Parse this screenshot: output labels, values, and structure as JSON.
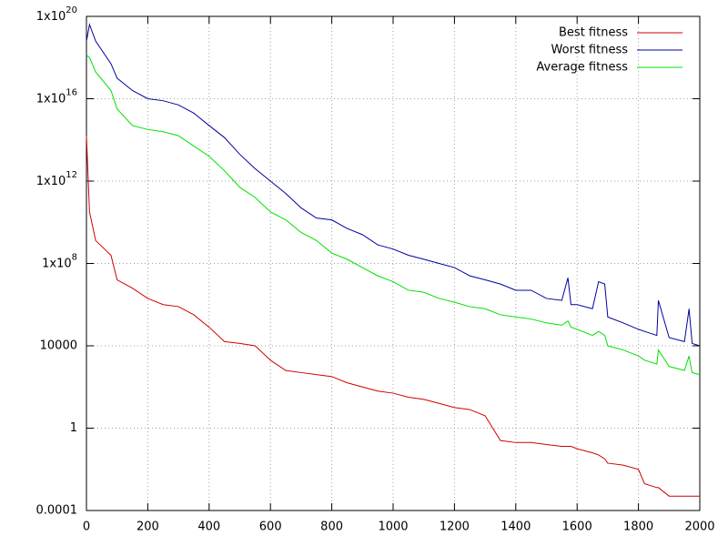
{
  "chart_data": {
    "type": "line",
    "log_y": true,
    "grid": true,
    "legend": "top-right",
    "xlim": [
      0,
      2000
    ],
    "xticks": [
      0,
      200,
      400,
      600,
      800,
      1000,
      1200,
      1400,
      1600,
      1800,
      2000
    ],
    "ylim": [
      0.0001,
      1e+20
    ],
    "yticks": [
      {
        "value": 0.0001,
        "label": "0.0001"
      },
      1,
      10000,
      {
        "value": 100000000.0,
        "label": "1x10^8"
      },
      {
        "value": 1000000000000.0,
        "label": "1x10^12"
      },
      {
        "value": 1e+16,
        "label": "1x10^16"
      },
      {
        "value": 1e+20,
        "label": "1x10^20"
      }
    ],
    "x": [
      0,
      10,
      30,
      80,
      100,
      150,
      200,
      250,
      300,
      350,
      400,
      450,
      500,
      550,
      600,
      650,
      700,
      750,
      800,
      850,
      900,
      950,
      1000,
      1050,
      1100,
      1150,
      1200,
      1250,
      1300,
      1350,
      1400,
      1450,
      1500,
      1550,
      1570,
      1580,
      1600,
      1650,
      1670,
      1690,
      1700,
      1750,
      1800,
      1820,
      1860,
      1865,
      1900,
      1950,
      1965,
      1975,
      2000
    ],
    "series": [
      {
        "name": "Best fitness",
        "color": "#d00000",
        "values": [
          160000000000000.0,
          32000000000.0,
          1300000000.0,
          250000000.0,
          16000000.0,
          6300000.0,
          2000000.0,
          1000000.0,
          800000.0,
          320000.0,
          80000.0,
          16000.0,
          13000.0,
          10000.0,
          2000,
          630,
          500,
          400,
          320,
          160,
          100,
          63,
          50,
          32,
          25,
          16,
          10,
          8,
          4,
          0.25,
          0.2,
          0.2,
          0.16,
          0.13,
          0.13,
          0.13,
          0.1,
          0.063,
          0.05,
          0.032,
          0.02,
          0.016,
          0.01,
          0.002,
          0.0013,
          0.0013,
          0.0005,
          0.0005,
          0.0005,
          0.0005,
          0.0005
        ]
      },
      {
        "name": "Worst fitness",
        "color": "#0000a0",
        "values": [
          6.3e+18,
          4e+19,
          6.3e+18,
          5e+17,
          1e+17,
          2.5e+16,
          1e+16,
          8000000000000000.0,
          5000000000000000.0,
          2000000000000000.0,
          500000000000000.0,
          130000000000000.0,
          20000000000000.0,
          4000000000000.0,
          1000000000000.0,
          250000000000.0,
          50000000000.0,
          16000000000.0,
          13000000000.0,
          5000000000.0,
          2500000000.0,
          800000000.0,
          500000000.0,
          250000000.0,
          160000000.0,
          100000000.0,
          63000000.0,
          25000000.0,
          16000000.0,
          10000000.0,
          5000000.0,
          5000000.0,
          2000000.0,
          1600000.0,
          20000000.0,
          1000000.0,
          1000000.0,
          630000.0,
          13000000.0,
          10000000.0,
          250000.0,
          130000.0,
          63000.0,
          50000.0,
          32000.0,
          1600000.0,
          25000.0,
          16000.0,
          630000.0,
          13000.0,
          10000.0
        ]
      },
      {
        "name": "Average fitness",
        "color": "#00e000",
        "values": [
          1.3e+18,
          1e+18,
          2e+17,
          2.5e+16,
          3200000000000000.0,
          500000000000000.0,
          320000000000000.0,
          250000000000000.0,
          160000000000000.0,
          50000000000000.0,
          16000000000000.0,
          3200000000000.0,
          500000000000.0,
          160000000000.0,
          32000000000.0,
          13000000000.0,
          3200000000.0,
          1300000000.0,
          320000000.0,
          160000000.0,
          63000000.0,
          25000000.0,
          13000000.0,
          5000000.0,
          4000000.0,
          2000000.0,
          1300000.0,
          800000.0,
          630000.0,
          320000.0,
          250000.0,
          200000.0,
          130000.0,
          100000.0,
          160000.0,
          80000.0,
          63000.0,
          32000.0,
          50000.0,
          32000.0,
          10000.0,
          6300,
          3200,
          2000,
          1300,
          6300,
          1000,
          630,
          3200,
          500,
          400
        ]
      }
    ]
  }
}
